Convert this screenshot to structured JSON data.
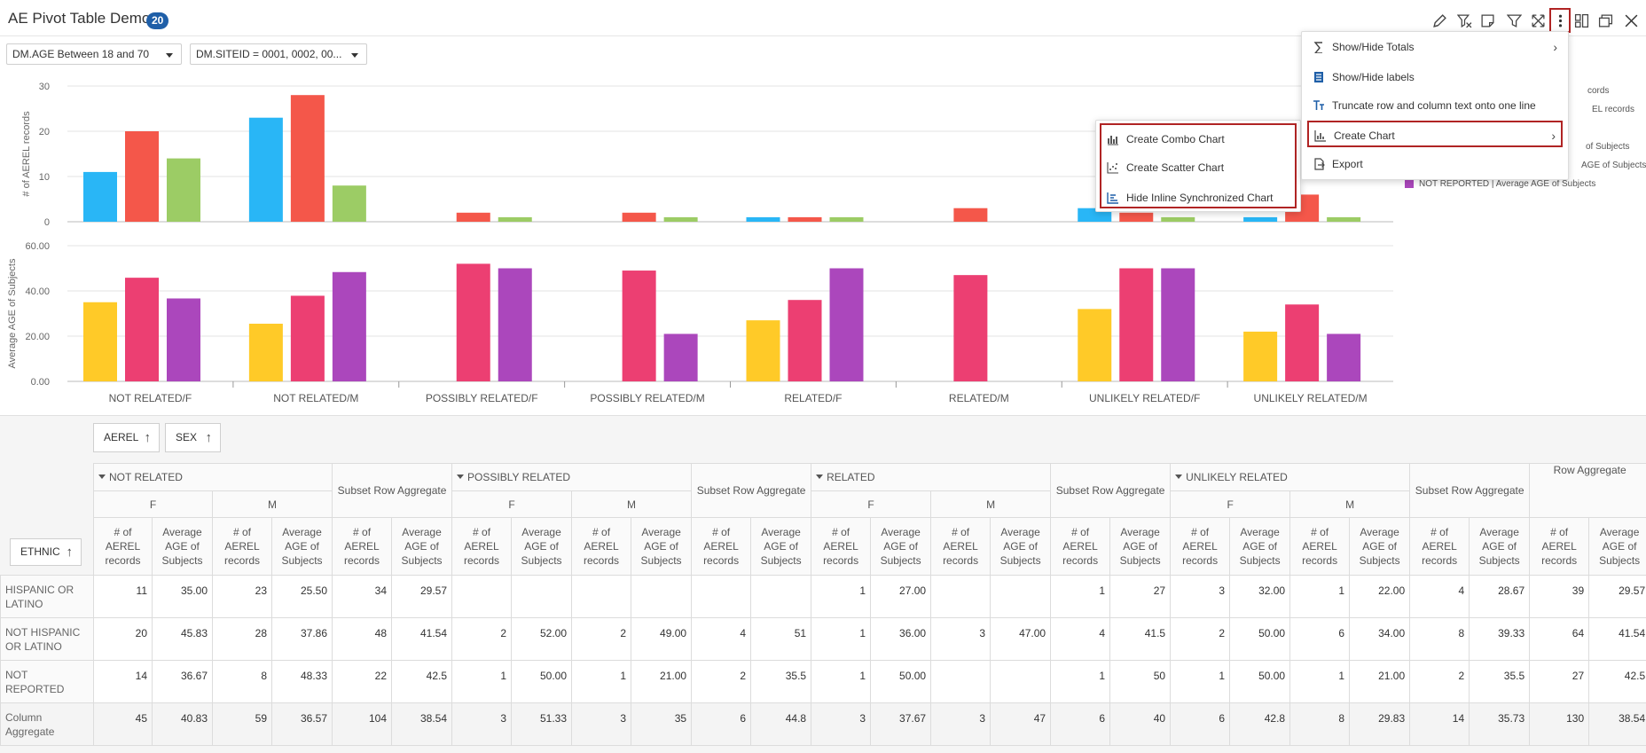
{
  "header": {
    "title": "AE Pivot Table Demo",
    "count_badge": "20",
    "toolbar": [
      "pencil-icon",
      "filter-clear-icon",
      "note-icon",
      "filter-icon",
      "expand-icon",
      "more-vertical-icon",
      "layout-icon",
      "window-icon",
      "close-icon"
    ]
  },
  "filters": [
    {
      "label": "DM.AGE Between 18 and 70"
    },
    {
      "label": "DM.SITEID = 0001, 0002, 00..."
    }
  ],
  "chart_data": [
    {
      "type": "bar",
      "ylabel": "# of AEREL records",
      "ylim": [
        0,
        30
      ],
      "yticks": [
        "0",
        "10",
        "20",
        "30"
      ],
      "categories": [
        "NOT RELATED/F",
        "NOT RELATED/M",
        "POSSIBLY RELATED/F",
        "POSSIBLY RELATED/M",
        "RELATED/F",
        "RELATED/M",
        "UNLIKELY RELATED/F",
        "UNLIKELY RELATED/M"
      ],
      "series": [
        {
          "color": "#29b6f6",
          "values": [
            11,
            23,
            0,
            0,
            1,
            0,
            3,
            1
          ]
        },
        {
          "color": "#f4574a",
          "values": [
            20,
            28,
            2,
            2,
            1,
            3,
            2,
            6
          ]
        },
        {
          "color": "#9ccc65",
          "values": [
            14,
            8,
            1,
            1,
            1,
            0,
            1,
            1
          ]
        }
      ]
    },
    {
      "type": "bar",
      "ylabel": "Average AGE of Subjects",
      "ylim": [
        0,
        60
      ],
      "yticks": [
        "0.00",
        "20.00",
        "40.00",
        "60.00"
      ],
      "categories": [
        "NOT RELATED/F",
        "NOT RELATED/M",
        "POSSIBLY RELATED/F",
        "POSSIBLY RELATED/M",
        "RELATED/F",
        "RELATED/M",
        "UNLIKELY RELATED/F",
        "UNLIKELY RELATED/M"
      ],
      "series": [
        {
          "color": "#ffca28",
          "values": [
            35,
            25.5,
            0,
            0,
            27,
            0,
            32,
            22
          ]
        },
        {
          "color": "#ec3f72",
          "values": [
            45.83,
            37.86,
            52,
            49,
            36,
            47,
            50,
            34
          ]
        },
        {
          "color": "#ab47bc",
          "values": [
            36.67,
            48.33,
            50,
            21,
            50,
            0,
            50,
            21
          ]
        }
      ],
      "legend_visible": [
        {
          "text": "cords",
          "color": "#f4574a"
        },
        {
          "text": "EL records",
          "color": "#9ccc65"
        },
        {
          "text": "of Subjects",
          "color": "#ffca28"
        },
        {
          "text": "AGE of Subjects",
          "color": "#ec3f72"
        },
        {
          "text": "NOT REPORTED | Average AGE of Subjects",
          "color": "#ab47bc"
        }
      ]
    }
  ],
  "pivot": {
    "chips": {
      "aerel": "AEREL",
      "sex": "SEX",
      "ethnic": "ETHNIC",
      "arrow": "↑"
    },
    "groups": [
      "NOT RELATED",
      "POSSIBLY RELATED",
      "RELATED",
      "UNLIKELY RELATED"
    ],
    "subset_label": "Subset Row Aggregate",
    "row_aggregate_label": "Row Aggregate",
    "sex": [
      "F",
      "M"
    ],
    "measures": [
      "# of AEREL records",
      "Average AGE of Subjects"
    ],
    "rows": [
      {
        "label": "HISPANIC OR LATINO",
        "cells": [
          "11",
          "35.00",
          "23",
          "25.50",
          "34",
          "29.57",
          "",
          "",
          "",
          "",
          "",
          "",
          "1",
          "27.00",
          "",
          "",
          "1",
          "27",
          "3",
          "32.00",
          "1",
          "22.00",
          "4",
          "28.67",
          "39",
          "29.57"
        ]
      },
      {
        "label": "NOT HISPANIC OR LATINO",
        "cells": [
          "20",
          "45.83",
          "28",
          "37.86",
          "48",
          "41.54",
          "2",
          "52.00",
          "2",
          "49.00",
          "4",
          "51",
          "1",
          "36.00",
          "3",
          "47.00",
          "4",
          "41.5",
          "2",
          "50.00",
          "6",
          "34.00",
          "8",
          "39.33",
          "64",
          "41.54"
        ]
      },
      {
        "label": "NOT REPORTED",
        "cells": [
          "14",
          "36.67",
          "8",
          "48.33",
          "22",
          "42.5",
          "1",
          "50.00",
          "1",
          "21.00",
          "2",
          "35.5",
          "1",
          "50.00",
          "",
          "",
          "1",
          "50",
          "1",
          "50.00",
          "1",
          "21.00",
          "2",
          "35.5",
          "27",
          "42.5"
        ]
      },
      {
        "label": "Column Aggregate",
        "cells": [
          "45",
          "40.83",
          "59",
          "36.57",
          "104",
          "38.54",
          "3",
          "51.33",
          "3",
          "35",
          "6",
          "44.8",
          "3",
          "37.67",
          "3",
          "47",
          "6",
          "40",
          "6",
          "42.8",
          "8",
          "29.83",
          "14",
          "35.73",
          "130",
          "38.54"
        ]
      }
    ]
  },
  "menu": {
    "items": [
      {
        "label": "Show/Hide Totals",
        "icon": "sigma-icon",
        "submenu": true
      },
      {
        "label": "Show/Hide labels",
        "icon": "labels-icon",
        "submenu": false
      },
      {
        "label": "Truncate row and column text onto one line",
        "icon": "truncate-text-icon",
        "submenu": false
      },
      {
        "label": "Create Chart",
        "icon": "bar-chart-icon",
        "submenu": true
      },
      {
        "label": "Export",
        "icon": "export-icon",
        "submenu": false
      }
    ]
  },
  "submenu": {
    "items": [
      {
        "label": "Create Combo Chart",
        "icon": "combo-chart-icon"
      },
      {
        "label": "Create Scatter Chart",
        "icon": "scatter-chart-icon"
      },
      {
        "label": "Hide Inline Synchronized Chart",
        "icon": "hide-chart-icon"
      }
    ]
  }
}
